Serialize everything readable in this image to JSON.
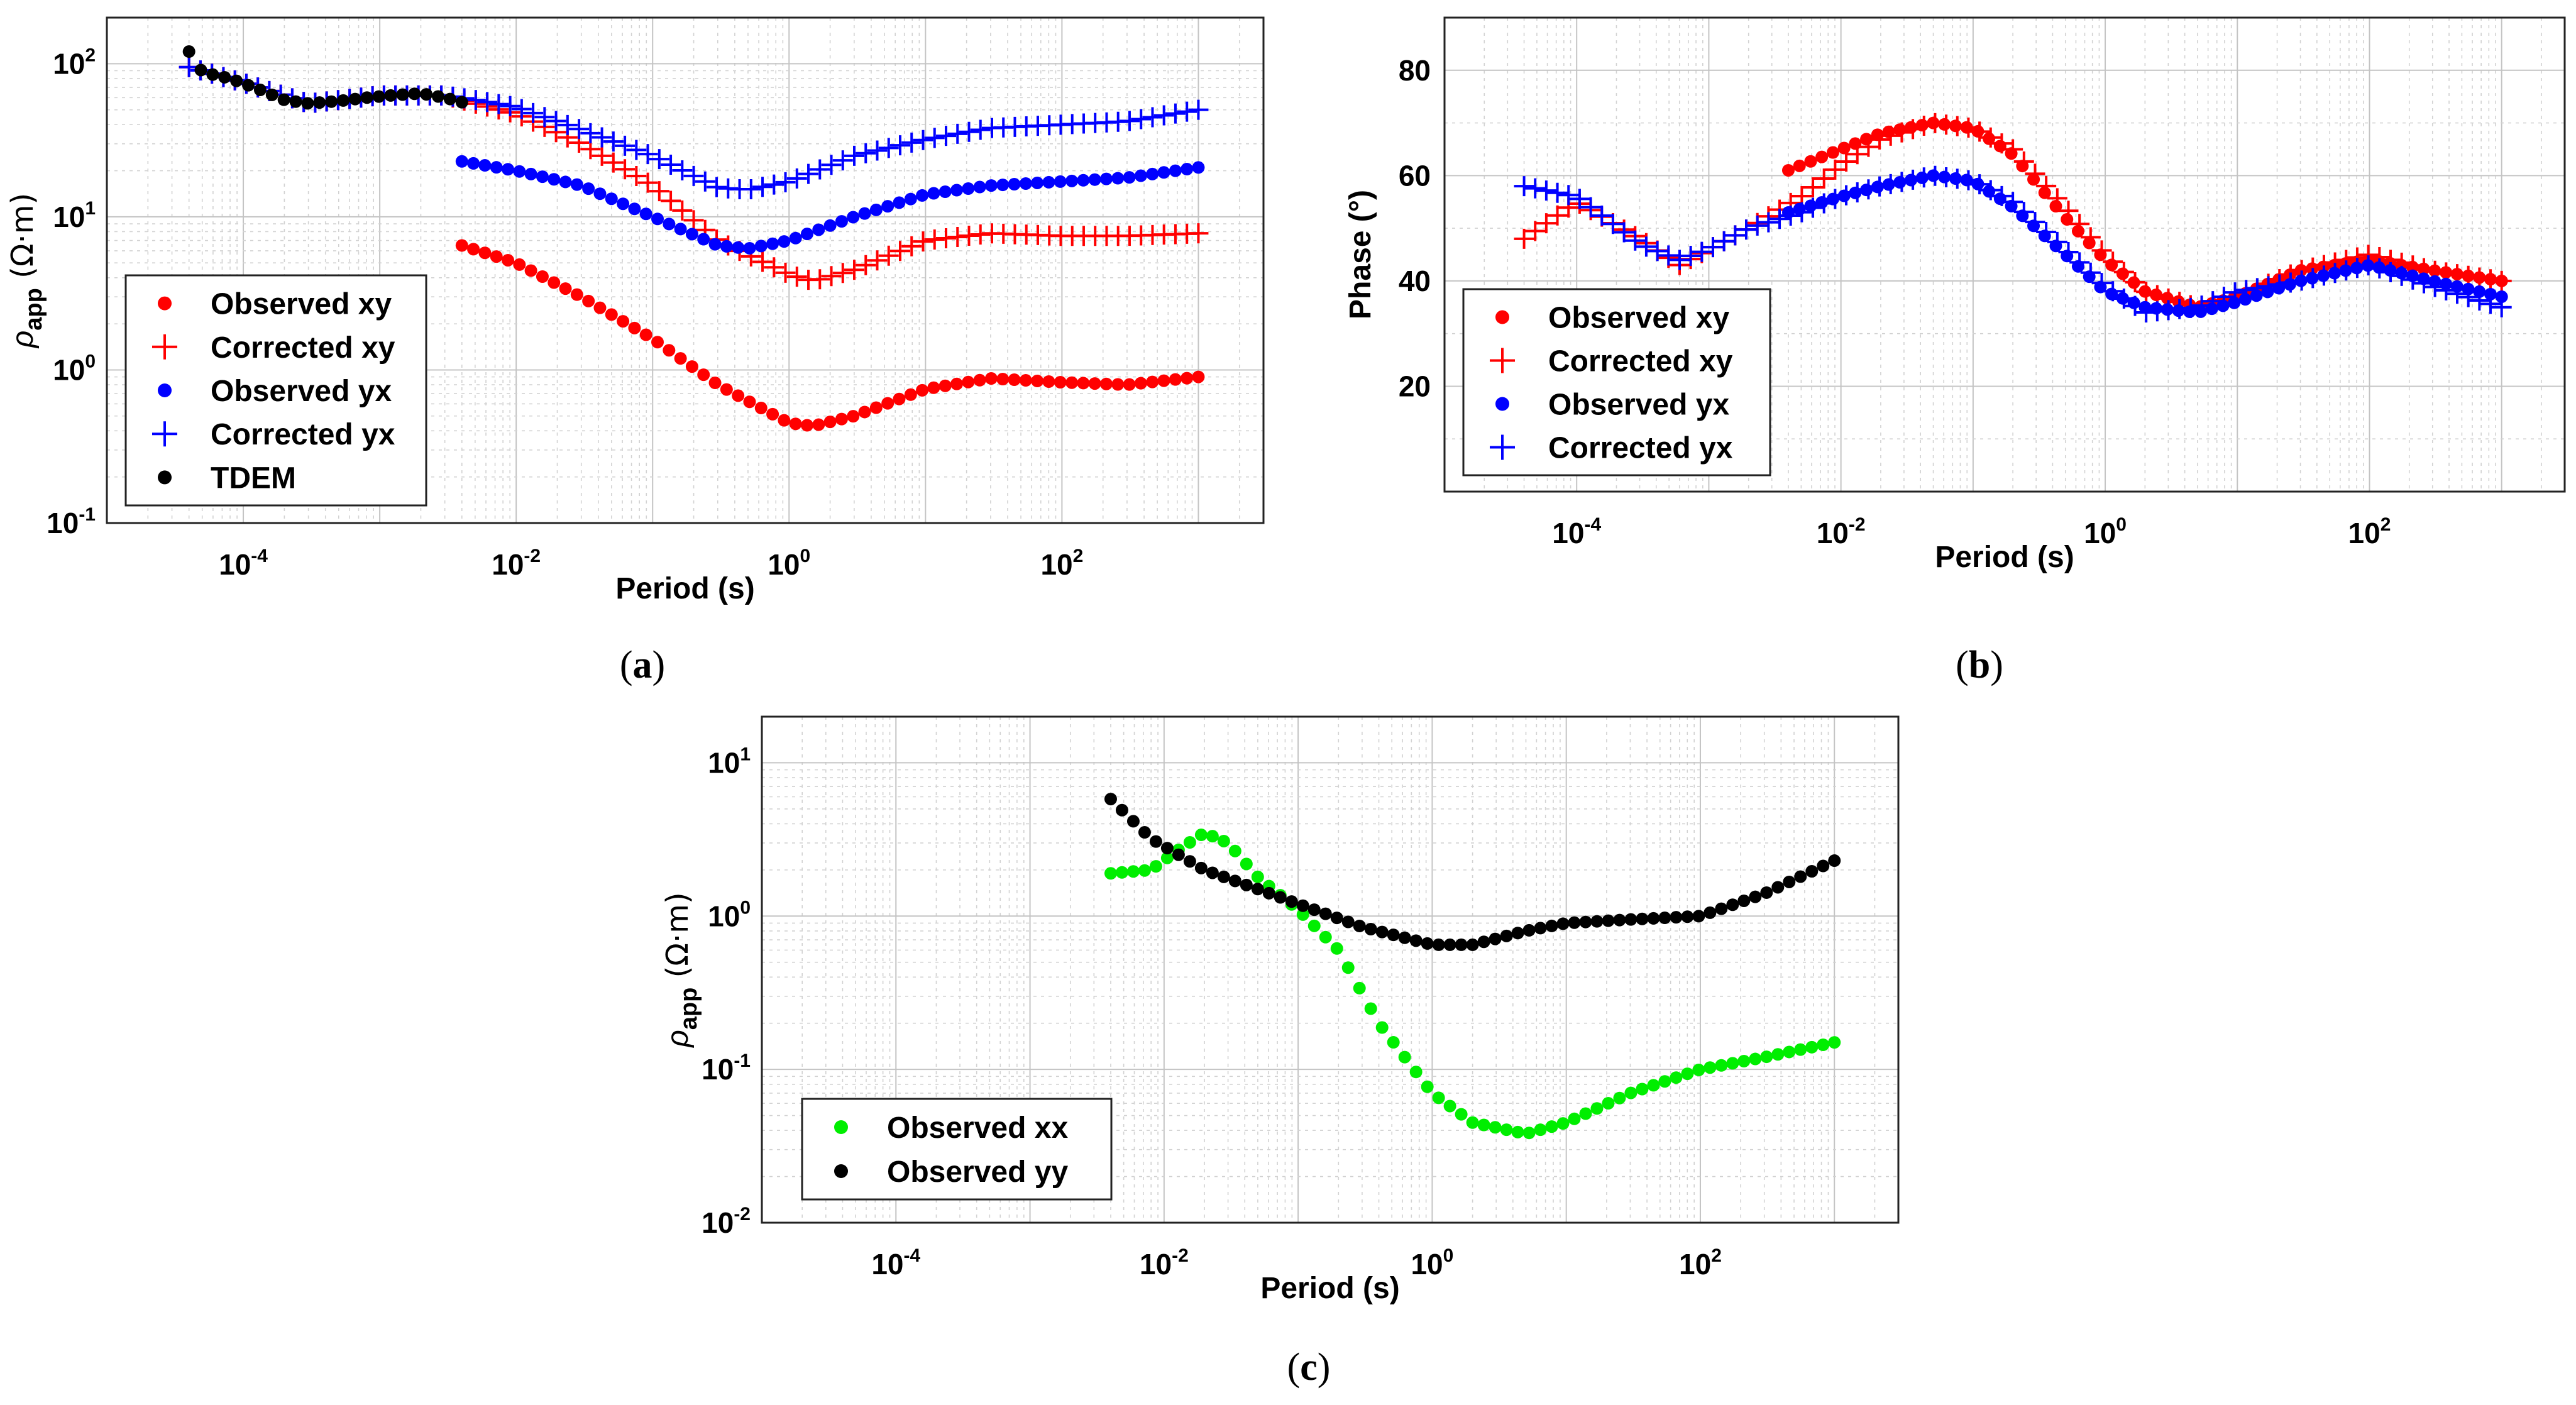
{
  "chart_data": [
    {
      "id": "a",
      "type": "scatter",
      "caption": "a",
      "xscale": "log",
      "yscale": "log",
      "xlim": [
        1e-05,
        3000
      ],
      "ylim": [
        0.1,
        200
      ],
      "xticks": [
        {
          "base": "10",
          "exp": "-4"
        },
        {
          "base": "10",
          "exp": "-2"
        },
        {
          "base": "10",
          "exp": "0"
        },
        {
          "base": "10",
          "exp": "2"
        }
      ],
      "yticks": [
        {
          "base": "10",
          "exp": "-1"
        },
        {
          "base": "10",
          "exp": "0"
        },
        {
          "base": "10",
          "exp": "1"
        },
        {
          "base": "10",
          "exp": "2"
        }
      ],
      "xlabel": "Period (s)",
      "ylabel": {
        "symbol": "ρ",
        "sub": "app",
        "unit": "(Ω·m)"
      },
      "legend_position": "bottom-left",
      "series": [
        {
          "name": "Observed xy",
          "marker": "dot",
          "color": "#ff0000",
          "x": [
            0.004,
            0.01,
            0.03,
            0.1,
            0.3,
            1,
            1.5,
            3,
            10,
            30,
            100,
            300,
            1000
          ],
          "y": [
            6.5,
            5.0,
            3.0,
            1.6,
            0.8,
            0.45,
            0.43,
            0.5,
            0.75,
            0.88,
            0.83,
            0.8,
            0.9
          ]
        },
        {
          "name": "Corrected xy",
          "marker": "plus",
          "color": "#ff0000",
          "x": [
            4e-05,
            0.0001,
            0.0003,
            0.001,
            0.003,
            0.005,
            0.01,
            0.03,
            0.1,
            0.3,
            1,
            1.5,
            3,
            10,
            30,
            100,
            300,
            1000
          ],
          "y": [
            95,
            75,
            55,
            62,
            62,
            55,
            47,
            30,
            16,
            7,
            4.2,
            3.8,
            4.5,
            7,
            7.8,
            7.5,
            7.5,
            7.8
          ]
        },
        {
          "name": "Observed yx",
          "marker": "dot",
          "color": "#0000ff",
          "x": [
            0.004,
            0.01,
            0.03,
            0.1,
            0.3,
            0.5,
            1,
            3,
            10,
            30,
            100,
            300,
            1000
          ],
          "y": [
            23,
            20,
            16,
            10,
            6.5,
            6.2,
            7,
            10,
            14,
            16,
            17,
            18,
            21
          ]
        },
        {
          "name": "Corrected yx",
          "marker": "plus",
          "color": "#0000ff",
          "x": [
            4e-05,
            0.0001,
            0.0003,
            0.001,
            0.003,
            0.005,
            0.01,
            0.03,
            0.1,
            0.3,
            0.5,
            1,
            3,
            10,
            30,
            100,
            300,
            1000
          ],
          "y": [
            95,
            75,
            55,
            62,
            62,
            58,
            52,
            37,
            25,
            15.5,
            15,
            17,
            25,
            32,
            38,
            40,
            42,
            50
          ]
        },
        {
          "name": "TDEM",
          "marker": "dot",
          "color": "#000000",
          "x": [
            4e-05,
            5e-05,
            8e-05,
            0.00012,
            0.0002,
            0.0003,
            0.0005,
            0.0008,
            0.0012,
            0.002,
            0.003,
            0.004
          ],
          "y": [
            120,
            88,
            80,
            70,
            58,
            55,
            57,
            60,
            62,
            64,
            60,
            56
          ]
        }
      ]
    },
    {
      "id": "b",
      "type": "scatter",
      "caption": "b",
      "xscale": "log",
      "yscale": "linear",
      "xlim": [
        1e-05,
        3000
      ],
      "ylim": [
        0,
        90
      ],
      "xticks": [
        {
          "base": "10",
          "exp": "-4"
        },
        {
          "base": "10",
          "exp": "-2"
        },
        {
          "base": "10",
          "exp": "0"
        },
        {
          "base": "10",
          "exp": "2"
        }
      ],
      "yticks": [
        "20",
        "40",
        "60",
        "80"
      ],
      "ytick_values": [
        20,
        40,
        60,
        80
      ],
      "xlabel": "Period (s)",
      "ylabel": {
        "text": "Phase (°)"
      },
      "legend_position": "bottom-left",
      "series": [
        {
          "name": "Observed xy",
          "marker": "dot",
          "color": "#ff0000",
          "x": [
            0.004,
            0.01,
            0.02,
            0.05,
            0.1,
            0.2,
            0.5,
            1,
            2,
            5,
            10,
            30,
            100,
            300,
            1000
          ],
          "y": [
            61,
            65,
            68,
            70,
            69,
            64,
            52,
            44,
            38,
            35,
            37,
            42,
            44,
            42,
            40
          ]
        },
        {
          "name": "Corrected xy",
          "marker": "plus",
          "color": "#ff0000",
          "x": [
            4e-05,
            0.0001,
            0.0003,
            0.0006,
            0.001,
            0.002,
            0.005,
            0.01,
            0.02,
            0.05,
            0.1,
            0.2,
            0.5,
            1,
            2,
            5,
            10,
            30,
            100,
            300,
            1000
          ],
          "y": [
            48,
            55,
            48,
            43,
            46,
            50,
            56,
            62,
            67,
            70,
            69,
            65,
            54,
            45,
            38,
            35,
            37,
            42,
            45,
            42,
            40
          ]
        },
        {
          "name": "Observed yx",
          "marker": "dot",
          "color": "#0000ff",
          "x": [
            0.004,
            0.01,
            0.02,
            0.05,
            0.1,
            0.2,
            0.5,
            1,
            2,
            5,
            10,
            30,
            100,
            300,
            1000
          ],
          "y": [
            53,
            56,
            58,
            60,
            59,
            54,
            45,
            38,
            35,
            34,
            36,
            40,
            43,
            40,
            37
          ]
        },
        {
          "name": "Corrected yx",
          "marker": "plus",
          "color": "#0000ff",
          "x": [
            4e-05,
            0.0001,
            0.0003,
            0.0006,
            0.001,
            0.002,
            0.005,
            0.01,
            0.02,
            0.05,
            0.1,
            0.2,
            0.5,
            1,
            2,
            5,
            10,
            30,
            100,
            300,
            1000
          ],
          "y": [
            58,
            56,
            47,
            44,
            46,
            50,
            53,
            56,
            58,
            60,
            59,
            55,
            46,
            39,
            34,
            35,
            38,
            40,
            43,
            39,
            35
          ]
        }
      ]
    },
    {
      "id": "c",
      "type": "scatter",
      "caption": "c",
      "xscale": "log",
      "yscale": "log",
      "xlim": [
        1e-05,
        3000
      ],
      "ylim": [
        0.01,
        20
      ],
      "xticks": [
        {
          "base": "10",
          "exp": "-4"
        },
        {
          "base": "10",
          "exp": "-2"
        },
        {
          "base": "10",
          "exp": "0"
        },
        {
          "base": "10",
          "exp": "2"
        }
      ],
      "yticks": [
        {
          "base": "10",
          "exp": "-2"
        },
        {
          "base": "10",
          "exp": "-1"
        },
        {
          "base": "10",
          "exp": "0"
        },
        {
          "base": "10",
          "exp": "1"
        }
      ],
      "xlabel": "Period (s)",
      "ylabel": {
        "symbol": "ρ",
        "sub": "app",
        "unit": "(Ω·m)"
      },
      "legend_position": "bottom-left",
      "series": [
        {
          "name": "Observed xx",
          "marker": "dot",
          "color": "#00ee00",
          "x": [
            0.004,
            0.008,
            0.012,
            0.02,
            0.03,
            0.05,
            0.1,
            0.2,
            0.4,
            1,
            2,
            5,
            10,
            30,
            100,
            300,
            1000
          ],
          "y": [
            1.9,
            2.0,
            2.6,
            3.5,
            3.0,
            1.8,
            1.1,
            0.6,
            0.2,
            0.07,
            0.045,
            0.038,
            0.045,
            0.07,
            0.1,
            0.12,
            0.15
          ]
        },
        {
          "name": "Observed yy",
          "marker": "dot",
          "color": "#000000",
          "x": [
            0.004,
            0.008,
            0.02,
            0.05,
            0.1,
            0.3,
            1,
            2,
            5,
            10,
            30,
            100,
            300,
            1000
          ],
          "y": [
            5.8,
            3.2,
            2.0,
            1.5,
            1.2,
            0.85,
            0.65,
            0.65,
            0.8,
            0.9,
            0.95,
            1.0,
            1.4,
            2.3
          ]
        }
      ]
    }
  ]
}
